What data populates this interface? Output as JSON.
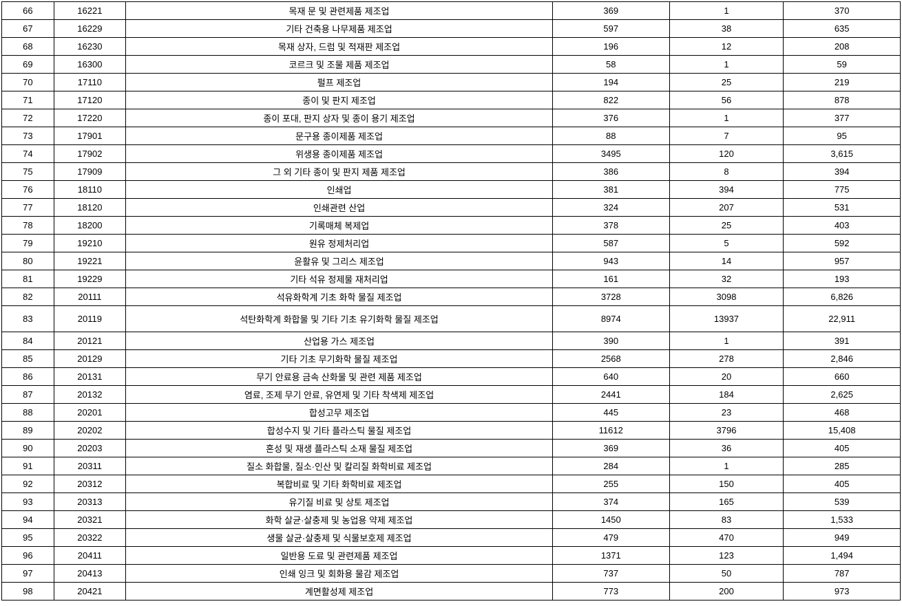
{
  "table": {
    "background_color": "#ffffff",
    "border_color": "#000000",
    "text_color": "#000000",
    "font_size": 13,
    "column_widths_percent": [
      5.8,
      8,
      47.5,
      13,
      12.7,
      13
    ],
    "columns": [
      "index",
      "code",
      "name",
      "value1",
      "value2",
      "value3"
    ],
    "rows": [
      {
        "idx": "66",
        "code": "16221",
        "name": "목재 문 및 관련제품 제조업",
        "v1": "369",
        "v2": "1",
        "v3": "370",
        "tall": false
      },
      {
        "idx": "67",
        "code": "16229",
        "name": "기타 건축용 나무제품 제조업",
        "v1": "597",
        "v2": "38",
        "v3": "635",
        "tall": false
      },
      {
        "idx": "68",
        "code": "16230",
        "name": "목재 상자, 드럼 및 적재판 제조업",
        "v1": "196",
        "v2": "12",
        "v3": "208",
        "tall": false
      },
      {
        "idx": "69",
        "code": "16300",
        "name": "코르크 및 조물 제품 제조업",
        "v1": "58",
        "v2": "1",
        "v3": "59",
        "tall": false
      },
      {
        "idx": "70",
        "code": "17110",
        "name": "펄프 제조업",
        "v1": "194",
        "v2": "25",
        "v3": "219",
        "tall": false
      },
      {
        "idx": "71",
        "code": "17120",
        "name": "종이 및 판지 제조업",
        "v1": "822",
        "v2": "56",
        "v3": "878",
        "tall": false
      },
      {
        "idx": "72",
        "code": "17220",
        "name": "종이 포대, 판지 상자 및 종이 용기 제조업",
        "v1": "376",
        "v2": "1",
        "v3": "377",
        "tall": false
      },
      {
        "idx": "73",
        "code": "17901",
        "name": "문구용 종이제품 제조업",
        "v1": "88",
        "v2": "7",
        "v3": "95",
        "tall": false
      },
      {
        "idx": "74",
        "code": "17902",
        "name": "위생용 종이제품 제조업",
        "v1": "3495",
        "v2": "120",
        "v3": "3,615",
        "tall": false
      },
      {
        "idx": "75",
        "code": "17909",
        "name": "그 외 기타 종이 및 판지 제품 제조업",
        "v1": "386",
        "v2": "8",
        "v3": "394",
        "tall": false
      },
      {
        "idx": "76",
        "code": "18110",
        "name": "인쇄업",
        "v1": "381",
        "v2": "394",
        "v3": "775",
        "tall": false
      },
      {
        "idx": "77",
        "code": "18120",
        "name": "인쇄관련 산업",
        "v1": "324",
        "v2": "207",
        "v3": "531",
        "tall": false
      },
      {
        "idx": "78",
        "code": "18200",
        "name": "기록매체 복제업",
        "v1": "378",
        "v2": "25",
        "v3": "403",
        "tall": false
      },
      {
        "idx": "79",
        "code": "19210",
        "name": "원유 정제처리업",
        "v1": "587",
        "v2": "5",
        "v3": "592",
        "tall": false
      },
      {
        "idx": "80",
        "code": "19221",
        "name": "윤활유 및 그리스 제조업",
        "v1": "943",
        "v2": "14",
        "v3": "957",
        "tall": false
      },
      {
        "idx": "81",
        "code": "19229",
        "name": "기타 석유 정제물 재처리업",
        "v1": "161",
        "v2": "32",
        "v3": "193",
        "tall": false
      },
      {
        "idx": "82",
        "code": "20111",
        "name": "석유화학계 기초 화학 물질 제조업",
        "v1": "3728",
        "v2": "3098",
        "v3": "6,826",
        "tall": false
      },
      {
        "idx": "83",
        "code": "20119",
        "name": "석탄화학계 화합물 및 기타 기초 유기화학 물질 제조업",
        "v1": "8974",
        "v2": "13937",
        "v3": "22,911",
        "tall": true
      },
      {
        "idx": "84",
        "code": "20121",
        "name": "산업용 가스 제조업",
        "v1": "390",
        "v2": "1",
        "v3": "391",
        "tall": false
      },
      {
        "idx": "85",
        "code": "20129",
        "name": "기타 기초 무기화학 물질 제조업",
        "v1": "2568",
        "v2": "278",
        "v3": "2,846",
        "tall": false
      },
      {
        "idx": "86",
        "code": "20131",
        "name": "무기 안료용 금속 산화물 및 관련 제품 제조업",
        "v1": "640",
        "v2": "20",
        "v3": "660",
        "tall": false
      },
      {
        "idx": "87",
        "code": "20132",
        "name": "염료, 조제 무기 안료, 유연제 및 기타 착색제 제조업",
        "v1": "2441",
        "v2": "184",
        "v3": "2,625",
        "tall": false
      },
      {
        "idx": "88",
        "code": "20201",
        "name": "합성고무 제조업",
        "v1": "445",
        "v2": "23",
        "v3": "468",
        "tall": false
      },
      {
        "idx": "89",
        "code": "20202",
        "name": "합성수지 및 기타 플라스틱 물질 제조업",
        "v1": "11612",
        "v2": "3796",
        "v3": "15,408",
        "tall": false
      },
      {
        "idx": "90",
        "code": "20203",
        "name": "혼성 및 재생 플라스틱 소재 물질 제조업",
        "v1": "369",
        "v2": "36",
        "v3": "405",
        "tall": false
      },
      {
        "idx": "91",
        "code": "20311",
        "name": "질소 화합물, 질소·인산 및 칼리질 화학비료 제조업",
        "v1": "284",
        "v2": "1",
        "v3": "285",
        "tall": false
      },
      {
        "idx": "92",
        "code": "20312",
        "name": "복합비료 및 기타 화학비료 제조업",
        "v1": "255",
        "v2": "150",
        "v3": "405",
        "tall": false
      },
      {
        "idx": "93",
        "code": "20313",
        "name": "유기질 비료 및 상토 제조업",
        "v1": "374",
        "v2": "165",
        "v3": "539",
        "tall": false
      },
      {
        "idx": "94",
        "code": "20321",
        "name": "화학 살균·살충제 및 농업용 약제 제조업",
        "v1": "1450",
        "v2": "83",
        "v3": "1,533",
        "tall": false
      },
      {
        "idx": "95",
        "code": "20322",
        "name": "생물 살균·살충제 및 식물보호제 제조업",
        "v1": "479",
        "v2": "470",
        "v3": "949",
        "tall": false
      },
      {
        "idx": "96",
        "code": "20411",
        "name": "일반용 도료 및 관련제품 제조업",
        "v1": "1371",
        "v2": "123",
        "v3": "1,494",
        "tall": false
      },
      {
        "idx": "97",
        "code": "20413",
        "name": "인쇄 잉크 및 회화용 물감 제조업",
        "v1": "737",
        "v2": "50",
        "v3": "787",
        "tall": false
      },
      {
        "idx": "98",
        "code": "20421",
        "name": "계면활성제 제조업",
        "v1": "773",
        "v2": "200",
        "v3": "973",
        "tall": false
      }
    ]
  }
}
